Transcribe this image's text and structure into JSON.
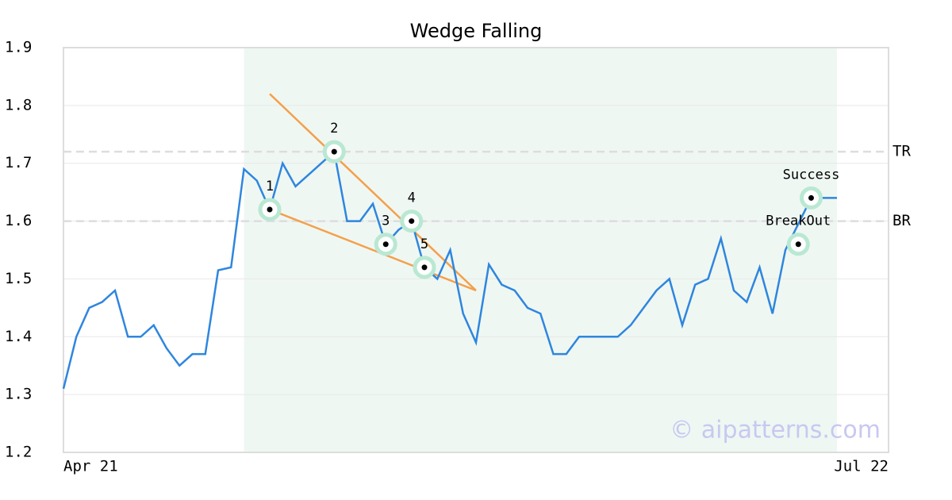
{
  "chart_data": {
    "type": "line",
    "title": "Wedge Falling",
    "series": [
      {
        "color": "#2e86de",
        "values": [
          1.31,
          1.4,
          1.45,
          1.46,
          1.48,
          1.4,
          1.4,
          1.42,
          1.38,
          1.35,
          1.37,
          1.37,
          1.515,
          1.52,
          1.69,
          1.67,
          1.62,
          1.7,
          1.66,
          1.68,
          1.7,
          1.72,
          1.6,
          1.6,
          1.63,
          1.56,
          1.585,
          1.6,
          1.52,
          1.5,
          1.55,
          1.44,
          1.39,
          1.525,
          1.49,
          1.48,
          1.45,
          1.44,
          1.37,
          1.37,
          1.4,
          1.4,
          1.4,
          1.4,
          1.42,
          1.45,
          1.48,
          1.5,
          1.42,
          1.49,
          1.5,
          1.57,
          1.48,
          1.46,
          1.52,
          1.44,
          1.55,
          1.595,
          1.64,
          1.64,
          1.64
        ]
      }
    ],
    "xlim": [
      0,
      64
    ],
    "xticks": [
      {
        "value": 0,
        "label": "Apr 21"
      },
      {
        "value": 64,
        "label": "Jul 22"
      }
    ],
    "ylim": [
      1.2,
      1.9
    ],
    "yticks": [
      1.2,
      1.3,
      1.4,
      1.5,
      1.6,
      1.7,
      1.8,
      1.9
    ],
    "grid": true,
    "shaded_range": [
      14,
      60
    ],
    "trendlines": [
      {
        "color": "#f4a04a",
        "x": [
          16,
          32
        ],
        "y": [
          1.82,
          1.48
        ]
      },
      {
        "color": "#f4a04a",
        "x": [
          16,
          32
        ],
        "y": [
          1.62,
          1.48
        ]
      }
    ],
    "levels": [
      {
        "label": "TR",
        "value": 1.72
      },
      {
        "label": "BR",
        "value": 1.6
      }
    ],
    "points": [
      {
        "label": "1",
        "x": 16,
        "y": 1.62
      },
      {
        "label": "2",
        "x": 21,
        "y": 1.72
      },
      {
        "label": "3",
        "x": 25,
        "y": 1.56
      },
      {
        "label": "4",
        "x": 27,
        "y": 1.6
      },
      {
        "label": "5",
        "x": 28,
        "y": 1.52
      },
      {
        "label": "BreakOut",
        "x": 57,
        "y": 1.56
      },
      {
        "label": "Success",
        "x": 58,
        "y": 1.64
      }
    ],
    "watermark": "© aipatterns.com"
  }
}
